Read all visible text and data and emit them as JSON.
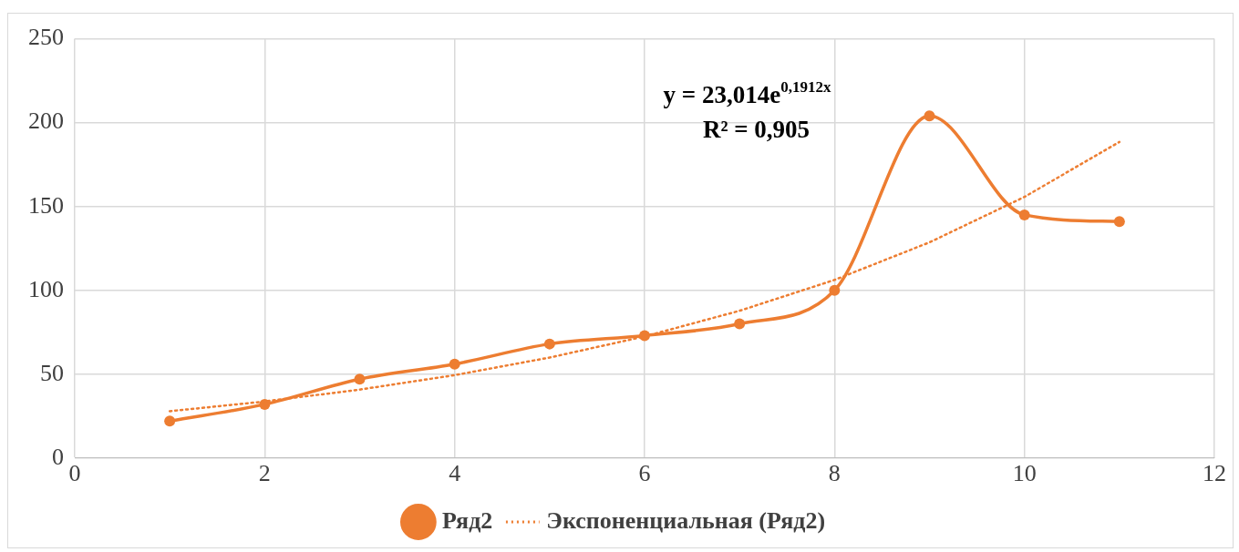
{
  "chart_data": {
    "type": "line",
    "x": [
      1,
      2,
      3,
      4,
      5,
      6,
      7,
      8,
      9,
      10,
      11
    ],
    "series": [
      {
        "name": "Ряд2",
        "color": "#ed7d31",
        "marker": "circle",
        "line_style": "solid",
        "values": [
          22,
          32,
          47,
          56,
          68,
          73,
          80,
          100,
          204,
          145,
          141
        ]
      },
      {
        "name": "Экспоненциальная (Ряд2)",
        "type": "line",
        "color": "#ed7d31",
        "marker": "none",
        "line_style": "dotted",
        "x": [
          1,
          2,
          3,
          4,
          5,
          6,
          7,
          8,
          9,
          10,
          11
        ],
        "values": [
          27.9,
          33.7,
          40.8,
          49.4,
          59.9,
          72.5,
          87.8,
          106.2,
          128.6,
          155.7,
          188.5
        ]
      }
    ],
    "annotations": [
      "y = 23,014e$^{0,1912x}$",
      "R² = 0,905"
    ],
    "xlim": [
      0,
      12
    ],
    "xticks": [
      0,
      2,
      4,
      6,
      8,
      10,
      12
    ],
    "ylim": [
      0,
      250
    ],
    "yticks": [
      0,
      50,
      100,
      150,
      200,
      250
    ],
    "grid": true,
    "legend": "bottom"
  }
}
